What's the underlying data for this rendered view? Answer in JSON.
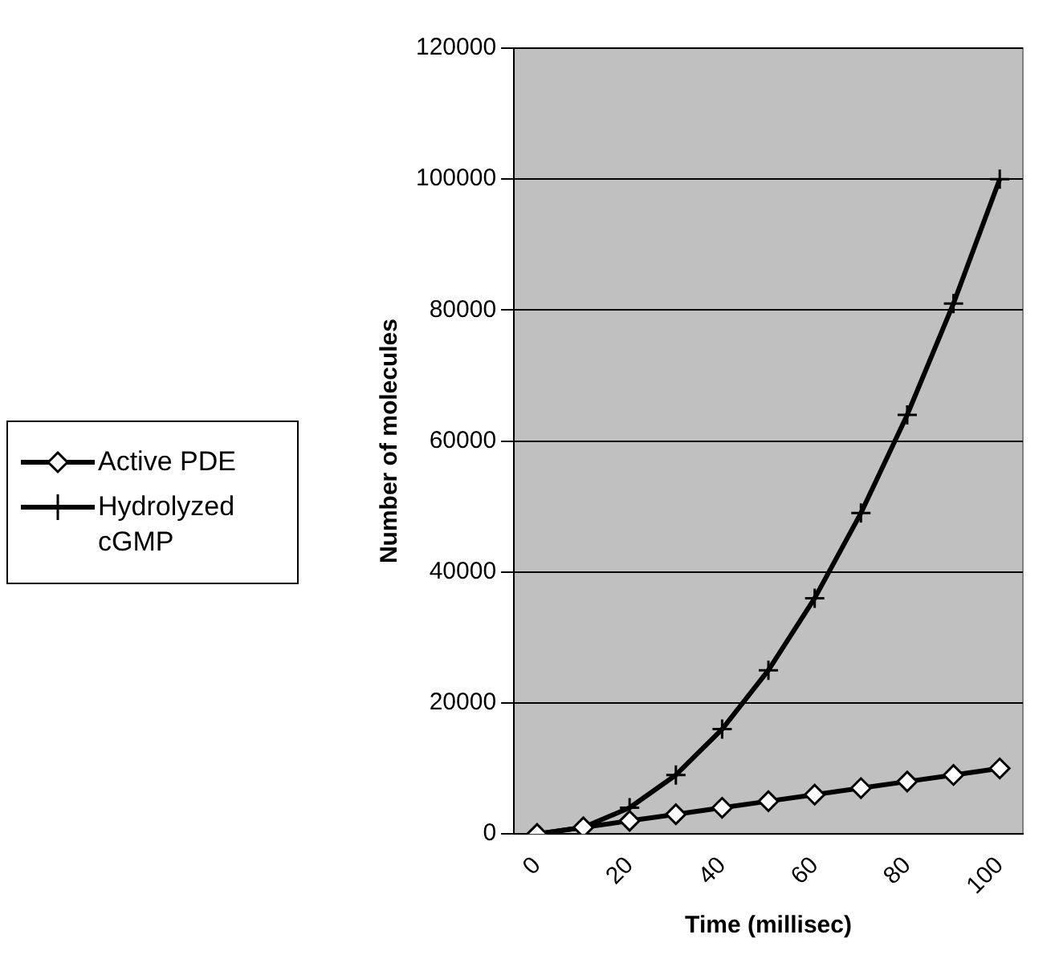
{
  "chart_data": {
    "type": "line",
    "xlabel": "Time (millisec)",
    "ylabel": "Number of molecules",
    "categories": [
      "0",
      null,
      "20",
      null,
      "40",
      null,
      "60",
      null,
      "80",
      null,
      "100"
    ],
    "series": [
      {
        "name": "Active PDE",
        "color": "#000000",
        "marker": "diamond",
        "values": [
          0,
          1000,
          2000,
          3000,
          4000,
          5000,
          6000,
          7000,
          8000,
          9000,
          10000
        ]
      },
      {
        "name": "Hydrolyzed cGMP",
        "color": "#000000",
        "marker": "cross",
        "values": [
          0,
          1000,
          4000,
          9000,
          16000,
          25000,
          36000,
          49000,
          64000,
          81000,
          100000
        ]
      }
    ],
    "ylim": [
      0,
      120000
    ],
    "yticks": [
      0,
      20000,
      40000,
      60000,
      80000,
      100000,
      120000
    ],
    "grid": "y",
    "legend": "left",
    "line_style": "solid"
  }
}
